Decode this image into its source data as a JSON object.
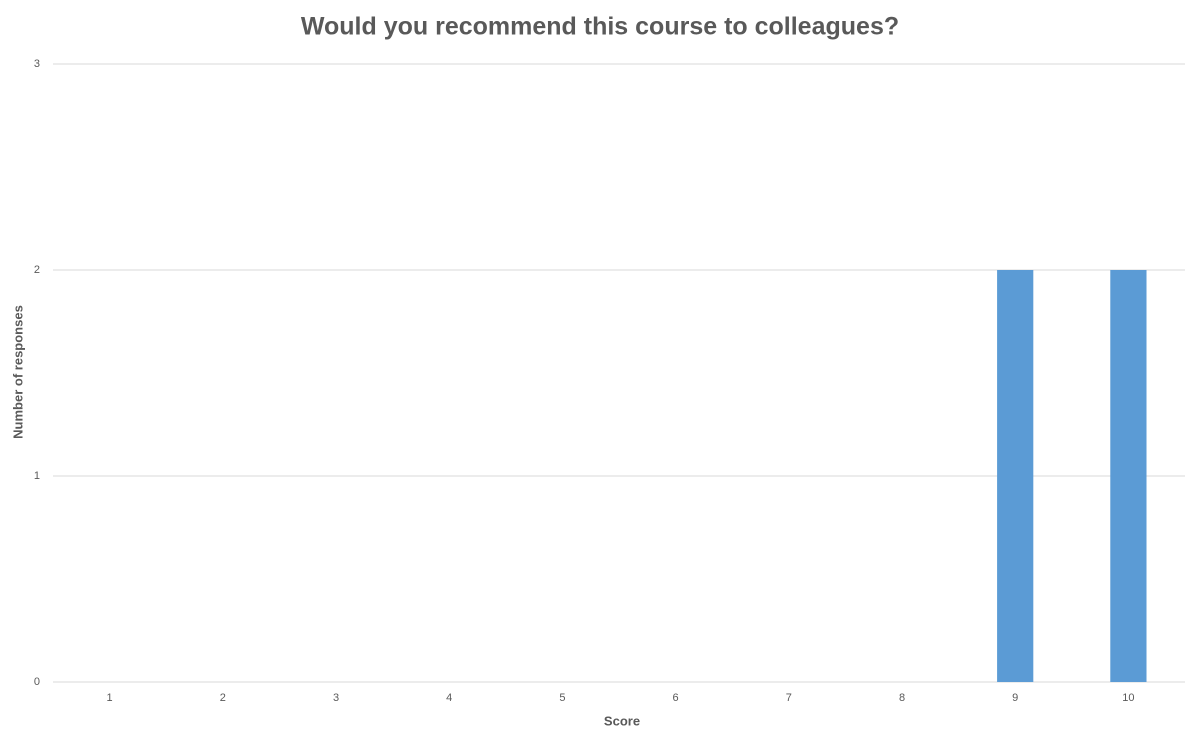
{
  "chart_data": {
    "type": "bar",
    "title": "Would you recommend this course to colleagues?",
    "x_label": "Score",
    "y_label": "Number of responses",
    "categories": [
      "1",
      "2",
      "3",
      "4",
      "5",
      "6",
      "7",
      "8",
      "9",
      "10"
    ],
    "values": [
      0,
      0,
      0,
      0,
      0,
      0,
      0,
      0,
      2,
      2
    ],
    "color": "#5b9bd5",
    "ylim": [
      0,
      3
    ],
    "yticks": [
      0,
      1,
      2,
      3
    ],
    "grid": true
  }
}
